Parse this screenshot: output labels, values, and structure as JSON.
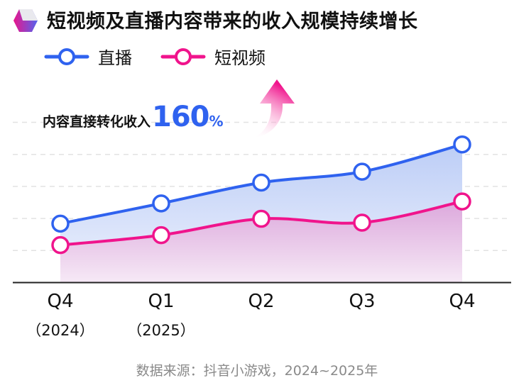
{
  "title": "短视频及直播内容带来的收入规模持续增长",
  "annotation": {
    "label": "内容直接转化收入",
    "value": "160",
    "unit": "%"
  },
  "source": "数据来源：抖音小游戏，2024~2025年",
  "colors": {
    "live": "#2f62ef",
    "short_video": "#f0148c",
    "text": "#111111",
    "source": "#8a8a8a"
  },
  "chart_data": {
    "type": "area",
    "categories": [
      "Q4",
      "Q1",
      "Q2",
      "Q3",
      "Q4"
    ],
    "category_sublabels": [
      "（2024）",
      "（2025）",
      "",
      "",
      ""
    ],
    "series": [
      {
        "name": "直播",
        "values": [
          1.84,
          2.47,
          3.12,
          3.46,
          4.31
        ]
      },
      {
        "name": "短视频",
        "values": [
          1.17,
          1.48,
          1.99,
          1.87,
          2.53
        ]
      }
    ],
    "ylim": [
      0,
      5
    ],
    "y_axis_labels": "none",
    "grid": "horizontal dashed",
    "legend": "top-left"
  }
}
